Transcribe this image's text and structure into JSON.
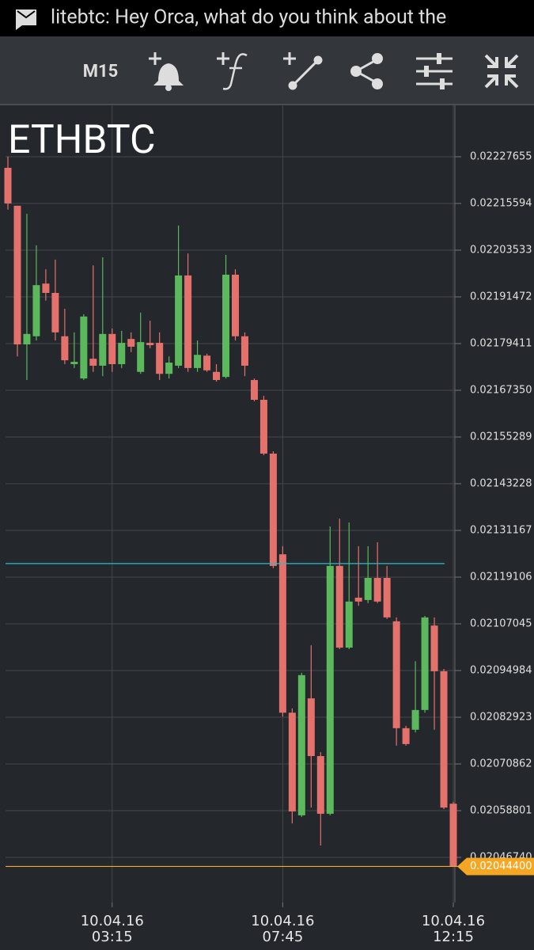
{
  "status_bar": {
    "text": "litebtc: Hey Orca, what do you think about the"
  },
  "toolbar": {
    "timeframe": "M15"
  },
  "chart_data": {
    "type": "candlestick",
    "title": "ETHBTC",
    "categories": [
      null,
      null,
      null,
      null,
      null,
      null,
      null,
      null,
      null,
      null,
      null,
      "10.04.16\n03:15",
      null,
      null,
      null,
      null,
      null,
      null,
      null,
      null,
      null,
      null,
      null,
      null,
      null,
      null,
      null,
      null,
      null,
      "10.04.16\n07:45",
      null,
      null,
      null,
      null,
      null,
      null,
      null,
      null,
      null,
      null,
      null,
      null,
      null,
      null,
      null,
      null,
      null,
      "10.04.16\n12:15"
    ],
    "open": [
      0.022248,
      0.02215,
      0.021792,
      0.021813,
      0.021949,
      0.021925,
      0.021813,
      0.021741,
      0.021704,
      0.021755,
      0.021737,
      0.021819,
      0.021741,
      0.021806,
      0.021721,
      0.021796,
      0.021796,
      0.021716,
      0.021737,
      0.02197,
      0.021731,
      0.021763,
      0.021721,
      0.021708,
      0.021972,
      0.021813,
      0.0217,
      0.021649,
      0.02151,
      0.02125,
      0.020841,
      0.020576,
      0.020878,
      0.020729,
      0.02058,
      0.02122,
      0.021009,
      0.021138,
      0.021132,
      0.021189,
      0.021189,
      0.021077,
      0.020801,
      0.020797,
      0.020848,
      0.021066,
      0.020948,
      0.020606
    ],
    "high": [
      0.022277,
      0.02215,
      0.022129,
      0.022048,
      0.021986,
      0.022011,
      0.021884,
      0.021823,
      0.02187,
      0.021996,
      0.022017,
      0.021833,
      0.021827,
      0.021823,
      0.021874,
      0.021853,
      0.021823,
      0.021761,
      0.022099,
      0.022027,
      0.021802,
      0.021768,
      0.021741,
      0.022023,
      0.021986,
      0.021823,
      0.021704,
      0.021659,
      0.021516,
      0.021271,
      0.020852,
      0.020944,
      0.021015,
      0.020739,
      0.021322,
      0.021342,
      0.021332,
      0.021271,
      0.021271,
      0.021281,
      0.02122,
      0.021087,
      0.020807,
      0.020974,
      0.021091,
      0.021087,
      0.020954,
      0.020611
    ],
    "low": [
      0.02214,
      0.021761,
      0.0217,
      0.021802,
      0.021905,
      0.021802,
      0.021741,
      0.021731,
      0.0217,
      0.021721,
      0.02171,
      0.021721,
      0.021731,
      0.021772,
      0.021716,
      0.021782,
      0.0217,
      0.021704,
      0.021731,
      0.021721,
      0.021721,
      0.021721,
      0.021696,
      0.021704,
      0.021802,
      0.02171,
      0.021645,
      0.021506,
      0.021214,
      0.020831,
      0.020555,
      0.020572,
      0.020596,
      0.020498,
      0.020576,
      0.021005,
      0.021005,
      0.021117,
      0.021124,
      0.021124,
      0.021083,
      0.020756,
      0.020756,
      0.02079,
      0.020841,
      0.020797,
      0.020592,
      0.020444
    ],
    "close": [
      0.022156,
      0.021792,
      0.021819,
      0.021945,
      0.021925,
      0.021823,
      0.021751,
      0.021747,
      0.021864,
      0.021737,
      0.021819,
      0.021741,
      0.021796,
      0.021786,
      0.021798,
      0.02179,
      0.021716,
      0.021745,
      0.02197,
      0.021731,
      0.021765,
      0.021725,
      0.0217,
      0.021972,
      0.021813,
      0.021737,
      0.021649,
      0.02151,
      0.02122,
      0.020841,
      0.020586,
      0.020938,
      0.020729,
      0.02058,
      0.02122,
      0.021009,
      0.021128,
      0.021128,
      0.021189,
      0.021128,
      0.021087,
      0.020801,
      0.02076,
      0.020848,
      0.021087,
      0.020948,
      0.020596,
      0.020444
    ],
    "up_color": "#5cb85c",
    "down_color": "#e5716d",
    "ylim": [
      0.0203509,
      0.0224094
    ],
    "yticks": [
      0.02227655,
      0.02215594,
      0.02203533,
      0.02191472,
      0.02179411,
      {
        "value": 0.0216735,
        "label": "0.02167350"
      },
      0.02155289,
      0.02143228,
      0.02131167,
      0.02119106,
      0.02107045,
      0.02094984,
      0.02082923,
      0.02070862,
      0.02058801,
      {
        "value": 0.0204674,
        "label": "0.02046740"
      }
    ],
    "grid": true,
    "level_line": {
      "value": 0.021226,
      "color": "#2bbcc9"
    },
    "last_price": {
      "value": 0.020444,
      "label": "0.02044400",
      "color": "#f5a623"
    }
  }
}
